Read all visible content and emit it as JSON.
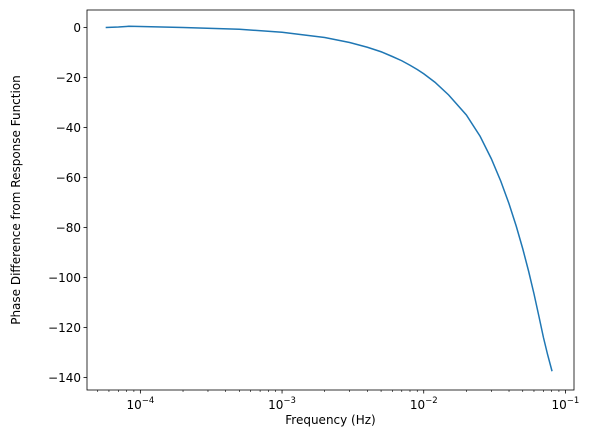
{
  "chart_data": {
    "type": "line",
    "title": "",
    "xlabel": "Frequency (Hz)",
    "ylabel": "Phase Difference from Response Function",
    "xscale": "log",
    "xlim": [
      4.2e-05,
      0.115
    ],
    "ylim": [
      -145,
      7
    ],
    "x_ticks": [
      {
        "value": 0.0001,
        "base": "10",
        "exp": "−4"
      },
      {
        "value": 0.001,
        "base": "10",
        "exp": "−3"
      },
      {
        "value": 0.01,
        "base": "10",
        "exp": "−2"
      },
      {
        "value": 0.1,
        "base": "10",
        "exp": "−1"
      }
    ],
    "y_ticks": [
      {
        "value": 0,
        "label": "0"
      },
      {
        "value": -20,
        "label": "−20"
      },
      {
        "value": -40,
        "label": "−40"
      },
      {
        "value": -60,
        "label": "−60"
      },
      {
        "value": -80,
        "label": "−80"
      },
      {
        "value": -100,
        "label": "−100"
      },
      {
        "value": -120,
        "label": "−120"
      },
      {
        "value": -140,
        "label": "−140"
      }
    ],
    "grid": false,
    "legend": "none",
    "series": [
      {
        "color": "#1f77b4",
        "x": [
          5.69e-05,
          7e-05,
          8.3e-05,
          0.0001,
          0.0002,
          0.0005,
          0.001,
          0.002,
          0.003,
          0.004,
          0.005,
          0.006,
          0.007,
          0.008,
          0.009,
          0.01,
          0.012,
          0.015,
          0.02,
          0.025,
          0.03,
          0.035,
          0.04,
          0.045,
          0.05,
          0.055,
          0.06,
          0.065,
          0.07,
          0.075,
          0.0805
        ],
        "y": [
          0,
          0.2,
          0.5,
          0.4,
          0,
          -0.7,
          -1.9,
          -4.0,
          -6.0,
          -7.9,
          -9.7,
          -11.6,
          -13.3,
          -15.1,
          -16.8,
          -18.5,
          -21.9,
          -27.0,
          -35.0,
          -43.5,
          -52.5,
          -61.5,
          -70.5,
          -79.5,
          -88.5,
          -97.5,
          -106.5,
          -115.5,
          -124.0,
          -131.0,
          -137.5
        ]
      }
    ]
  }
}
